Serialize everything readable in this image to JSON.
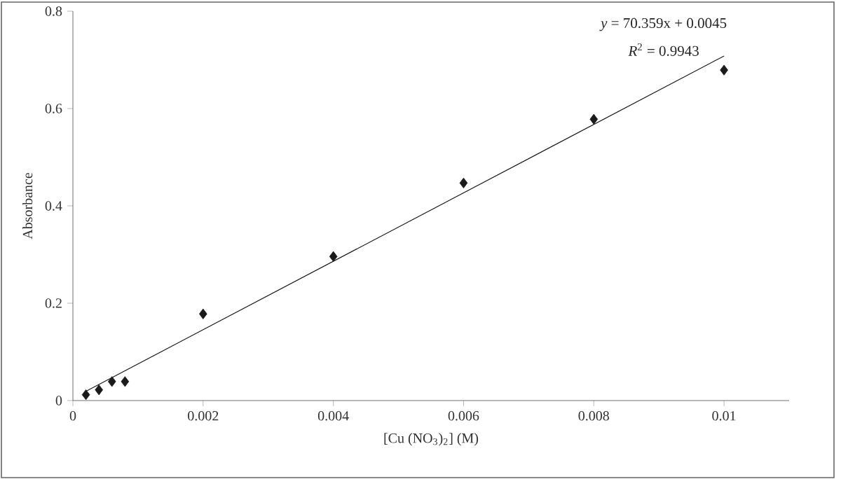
{
  "chart_data": {
    "type": "scatter",
    "xlabel": "[Cu (NO$_{3}$)$_{2}$] (M)",
    "ylabel": "Absorbance",
    "x": [
      0.0002,
      0.0004,
      0.0006,
      0.0008,
      0.002,
      0.004,
      0.006,
      0.008,
      0.01
    ],
    "series": [
      {
        "color": "#1a1a1a",
        "marker": "diamond",
        "values": [
          0.012,
          0.022,
          0.039,
          0.039,
          0.178,
          0.296,
          0.447,
          0.578,
          0.679
        ]
      },
      {
        "type": "line",
        "color": "#1a1a1a",
        "marker": "none",
        "x": [
          0.0002,
          0.01
        ],
        "values": [
          0.019,
          0.708
        ]
      }
    ],
    "annotations": [
      "*y* = 70.359x + 0.0045",
      "*R*$^{2}$ = 0.9943"
    ],
    "xlim": [
      0,
      0.011
    ],
    "ylim": [
      0,
      0.8
    ],
    "xticks": [
      0,
      0.002,
      0.004,
      0.006,
      0.008,
      0.01
    ],
    "yticks": [
      0,
      0.2,
      0.4,
      0.6,
      0.8
    ],
    "grid": false
  }
}
